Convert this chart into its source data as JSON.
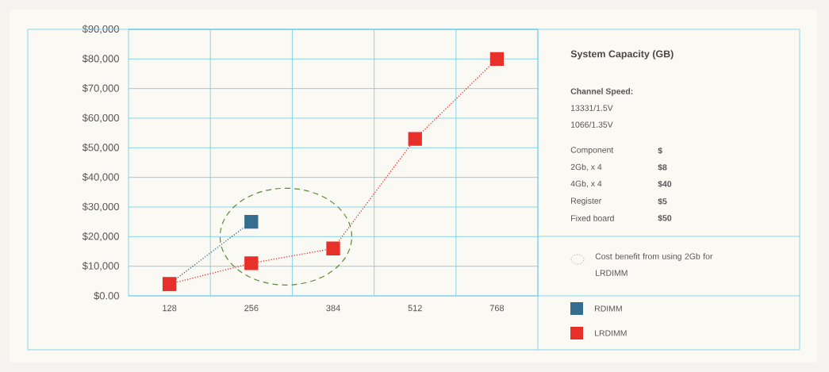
{
  "chart_data": {
    "type": "line",
    "xlabel": "System Capacity (GB)",
    "categories": [
      "128",
      "256",
      "384",
      "512",
      "768"
    ],
    "series": [
      {
        "name": "RDIMM",
        "color": "#366d8f",
        "values": [
          4000,
          25000,
          null,
          null,
          null
        ]
      },
      {
        "name": "LRDIMM",
        "color": "#e8302a",
        "values": [
          4000,
          11000,
          16000,
          53000,
          80000
        ]
      }
    ],
    "ylim": [
      0,
      90000
    ],
    "yticks": [
      {
        "value": 0,
        "label": "$0.00"
      },
      {
        "value": 10000,
        "label": "$10,000"
      },
      {
        "value": 20000,
        "label": "$20,000"
      },
      {
        "value": 30000,
        "label": "$30,000"
      },
      {
        "value": 40000,
        "label": "$40,000"
      },
      {
        "value": 50000,
        "label": "$50,000"
      },
      {
        "value": 60000,
        "label": "$60,000"
      },
      {
        "value": 70000,
        "label": "$70,000"
      },
      {
        "value": 80000,
        "label": "$80,000"
      },
      {
        "value": 90000,
        "label": "$90,000"
      }
    ],
    "grid": true,
    "legend": "right",
    "marker": "square",
    "line_style": "dotted",
    "annotations": [
      "Channel Speed:",
      "13331/1.5V",
      "1066/1.35V",
      "Component",
      "$",
      "2Gb, x 4",
      "$8",
      "4Gb, x 4",
      "$40",
      "Register",
      "$5",
      "Fixed board",
      "$50",
      "Cost benefit from using 2Gb for LRDIMM"
    ]
  }
}
